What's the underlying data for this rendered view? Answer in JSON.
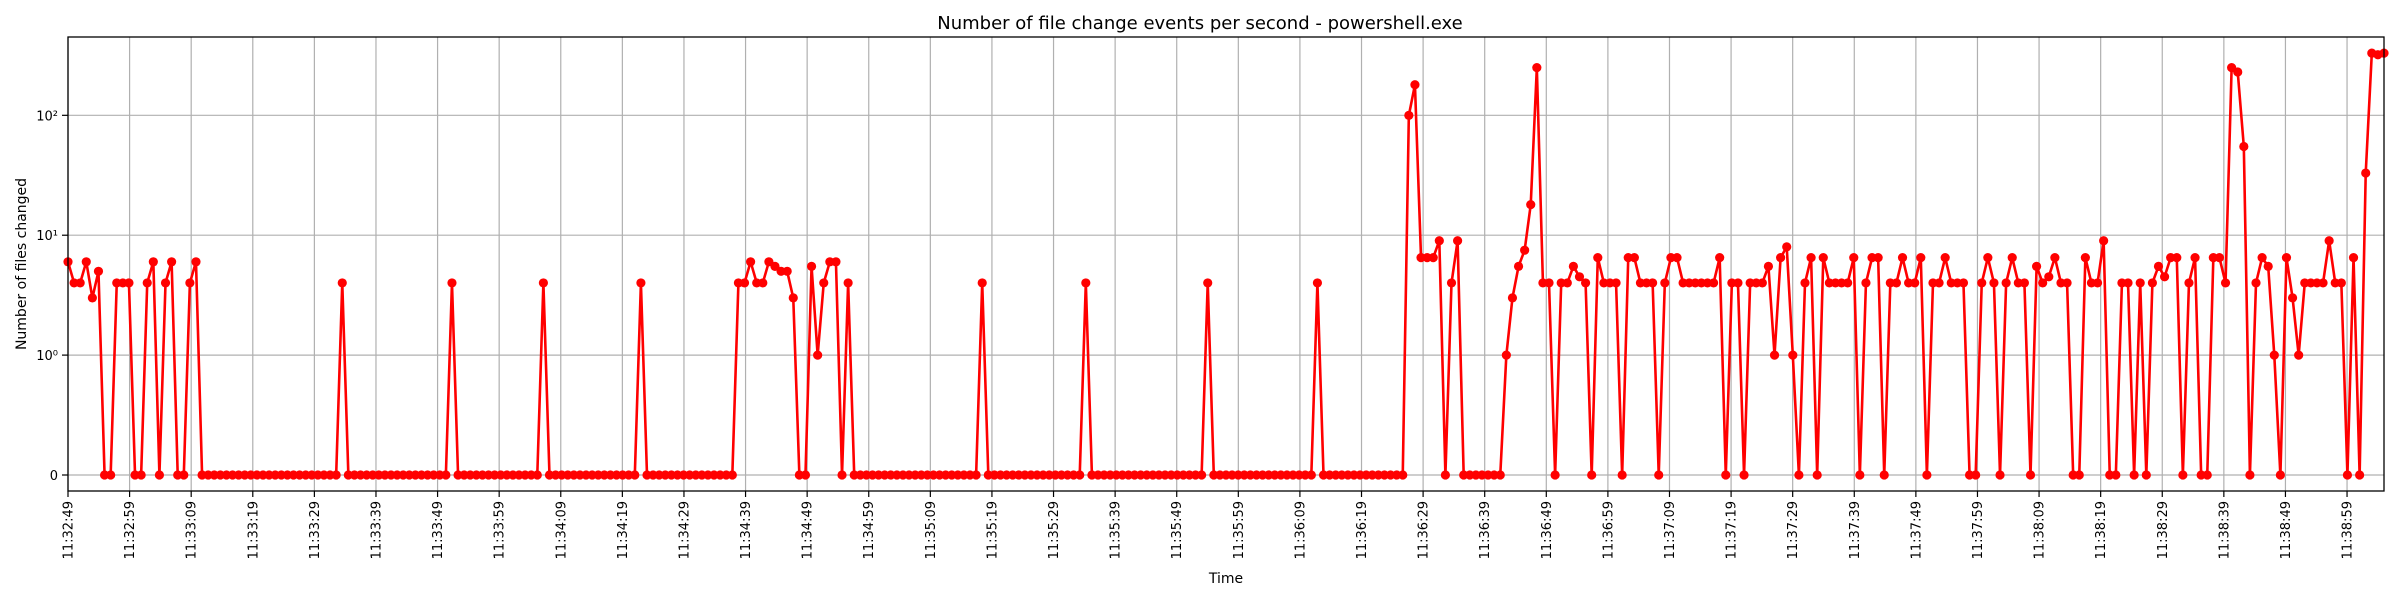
{
  "chart_data": {
    "type": "line",
    "title": "Number of file change events per second - powershell.exe",
    "xlabel": "Time",
    "ylabel": "Number of files changed",
    "y_scale": "symlog",
    "y_ticks": [
      {
        "value": 0,
        "label": "0"
      },
      {
        "value": 1,
        "label": "10⁰"
      },
      {
        "value": 10,
        "label": "10¹"
      },
      {
        "value": 100,
        "label": "10²"
      }
    ],
    "y_max": 450,
    "grid": true,
    "color": "#ff0000",
    "marker": "circle",
    "x_tick_labels": [
      "11:32:49",
      "11:32:59",
      "11:33:09",
      "11:33:19",
      "11:33:29",
      "11:33:39",
      "11:33:49",
      "11:33:59",
      "11:34:09",
      "11:34:19",
      "11:34:29",
      "11:34:39",
      "11:34:49",
      "11:34:59",
      "11:35:09",
      "11:35:19",
      "11:35:29",
      "11:35:39",
      "11:35:49",
      "11:35:59",
      "11:36:09",
      "11:36:19",
      "11:36:29",
      "11:36:39",
      "11:36:49",
      "11:36:59",
      "11:37:09",
      "11:37:19",
      "11:37:29",
      "11:37:39",
      "11:37:49",
      "11:37:59",
      "11:38:09",
      "11:38:19",
      "11:38:29",
      "11:38:39",
      "11:38:49",
      "11:38:59"
    ],
    "x_tick_step_seconds": 10,
    "x_start": "11:32:49",
    "x_end": "11:39:05",
    "values": [
      6,
      4,
      4,
      6,
      3,
      5,
      0,
      0,
      4,
      4,
      4,
      0,
      0,
      4,
      6,
      0,
      4,
      6,
      0,
      0,
      4,
      6,
      0,
      0,
      0,
      0,
      0,
      0,
      0,
      0,
      0,
      0,
      0,
      0,
      0,
      0,
      0,
      0,
      0,
      0,
      0,
      0,
      0,
      0,
      0,
      4,
      0,
      0,
      0,
      0,
      0,
      0,
      0,
      0,
      0,
      0,
      0,
      0,
      0,
      0,
      0,
      0,
      0,
      4,
      0,
      0,
      0,
      0,
      0,
      0,
      0,
      0,
      0,
      0,
      0,
      0,
      0,
      0,
      4,
      0,
      0,
      0,
      0,
      0,
      0,
      0,
      0,
      0,
      0,
      0,
      0,
      0,
      0,
      0,
      4,
      0,
      0,
      0,
      0,
      0,
      0,
      0,
      0,
      0,
      0,
      0,
      0,
      0,
      0,
      0,
      4,
      4,
      6,
      4,
      4,
      6,
      5.5,
      5,
      5,
      3,
      0,
      0,
      5.5,
      1,
      4,
      6,
      6,
      0,
      4,
      0,
      0,
      0,
      0,
      0,
      0,
      0,
      0,
      0,
      0,
      0,
      0,
      0,
      0,
      0,
      0,
      0,
      0,
      0,
      0,
      0,
      4,
      0,
      0,
      0,
      0,
      0,
      0,
      0,
      0,
      0,
      0,
      0,
      0,
      0,
      0,
      0,
      0,
      4,
      0,
      0,
      0,
      0,
      0,
      0,
      0,
      0,
      0,
      0,
      0,
      0,
      0,
      0,
      0,
      0,
      0,
      0,
      0,
      4,
      0,
      0,
      0,
      0,
      0,
      0,
      0,
      0,
      0,
      0,
      0,
      0,
      0,
      0,
      0,
      0,
      0,
      4,
      0,
      0,
      0,
      0,
      0,
      0,
      0,
      0,
      0,
      0,
      0,
      0,
      0,
      0,
      100,
      180,
      6.5,
      6.5,
      6.5,
      9,
      0,
      4,
      9,
      0,
      0,
      0,
      0,
      0,
      0,
      0,
      1,
      3,
      5.5,
      7.5,
      18,
      250,
      4,
      4,
      0,
      4,
      4,
      5.5,
      4.5,
      4,
      0,
      6.5,
      4,
      4,
      4,
      0,
      6.5,
      6.5,
      4,
      4,
      4,
      0,
      4,
      6.5,
      6.5,
      4,
      4,
      4,
      4,
      4,
      4,
      6.5,
      0,
      4,
      4,
      0,
      4,
      4,
      4,
      5.5,
      1,
      6.5,
      8,
      1,
      0,
      4,
      6.5,
      0,
      6.5,
      4,
      4,
      4,
      4,
      6.5,
      0,
      4,
      6.5,
      6.5,
      0,
      4,
      4,
      6.5,
      4,
      4,
      6.5,
      0,
      4,
      4,
      6.5,
      4,
      4,
      4,
      0,
      0,
      4,
      6.5,
      4,
      0,
      4,
      6.5,
      4,
      4,
      0,
      5.5,
      4,
      4.5,
      6.5,
      4,
      4,
      0,
      0,
      6.5,
      4,
      4,
      9,
      0,
      0,
      4,
      4,
      0,
      4,
      0,
      4,
      5.5,
      4.5,
      6.5,
      6.5,
      0,
      4,
      6.5,
      0,
      0,
      6.5,
      6.5,
      4,
      250,
      230,
      55,
      0,
      4,
      6.5,
      5.5,
      1,
      0,
      6.5,
      3,
      1,
      4,
      4,
      4,
      4,
      9,
      4,
      4,
      0,
      6.5,
      0,
      33,
      330,
      320,
      330
    ]
  }
}
